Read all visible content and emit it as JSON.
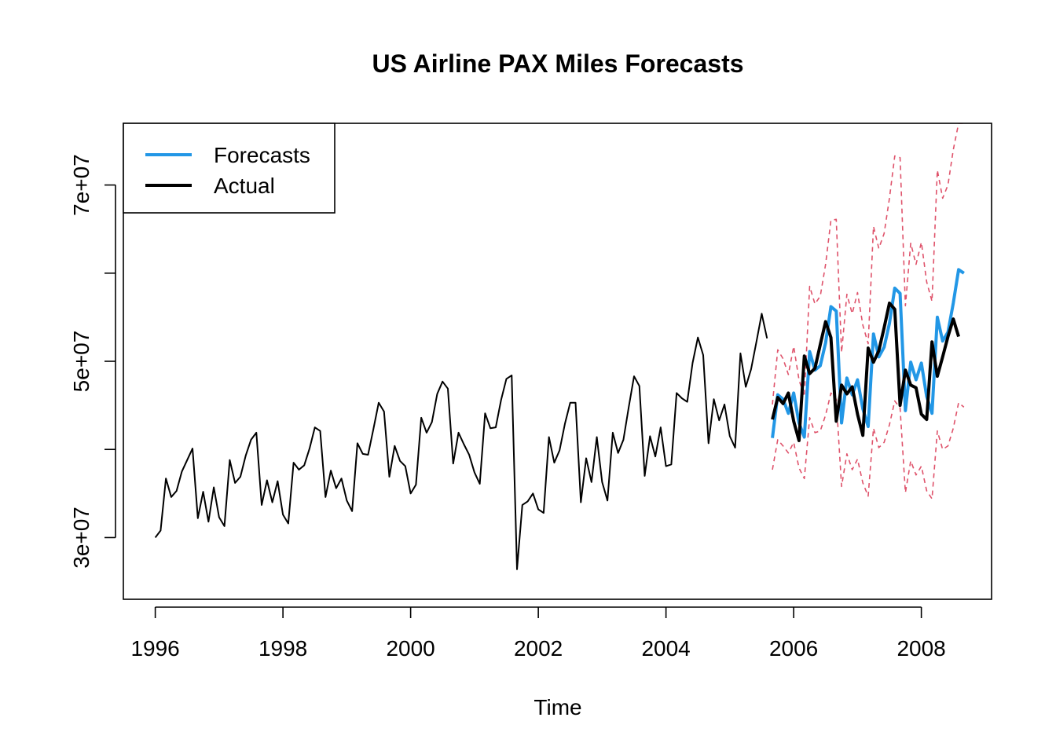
{
  "chart_data": {
    "type": "line",
    "title": "US Airline PAX Miles Forecasts",
    "xlabel": "Time",
    "ylabel": "",
    "xlim": [
      1995.5,
      2009.1
    ],
    "ylim": [
      23000000,
      77000000
    ],
    "x_ticks": [
      {
        "value": 1996,
        "label": "1996"
      },
      {
        "value": 1998,
        "label": "1998"
      },
      {
        "value": 2000,
        "label": "2000"
      },
      {
        "value": 2002,
        "label": "2002"
      },
      {
        "value": 2004,
        "label": "2004"
      },
      {
        "value": 2006,
        "label": "2006"
      },
      {
        "value": 2008,
        "label": "2008"
      }
    ],
    "y_ticks": [
      {
        "value": 30000000,
        "label": "3e+07"
      },
      {
        "value": 40000000,
        "label": ""
      },
      {
        "value": 50000000,
        "label": "5e+07"
      },
      {
        "value": 60000000,
        "label": ""
      },
      {
        "value": 70000000,
        "label": "7e+07"
      }
    ],
    "grid": false,
    "legend": {
      "position": "top-left",
      "entries": [
        {
          "label": "Forecasts",
          "color": "#2297E6"
        },
        {
          "label": "Actual",
          "color": "#000000"
        }
      ]
    },
    "colors": {
      "history": "#000000",
      "forecast": "#2297E6",
      "actual": "#000000",
      "interval": "#DF536B"
    },
    "series": [
      {
        "role": "history",
        "x_start": 1996.0,
        "x_step": 0.08333,
        "values": [
          30000000,
          30800000,
          36700000,
          34600000,
          35300000,
          37500000,
          38800000,
          40100000,
          32200000,
          35200000,
          31800000,
          35700000,
          32300000,
          31300000,
          38800000,
          36200000,
          36900000,
          39300000,
          41100000,
          41900000,
          33700000,
          36500000,
          34000000,
          36400000,
          32600000,
          31600000,
          38500000,
          37700000,
          38200000,
          40100000,
          42500000,
          42100000,
          34600000,
          37600000,
          35600000,
          36700000,
          34200000,
          33000000,
          40700000,
          39500000,
          39400000,
          42300000,
          45300000,
          44300000,
          36900000,
          40400000,
          38700000,
          38100000,
          35000000,
          36000000,
          43600000,
          41900000,
          43100000,
          46300000,
          47700000,
          46900000,
          38400000,
          41900000,
          40600000,
          39400000,
          37400000,
          36100000,
          44100000,
          42400000,
          42500000,
          45600000,
          48000000,
          48400000,
          26400000,
          33700000,
          34100000,
          35000000,
          33200000,
          32800000,
          41400000,
          38500000,
          39900000,
          42900000,
          45300000,
          45300000,
          34000000,
          39000000,
          36300000,
          41400000,
          36300000,
          34200000,
          41900000,
          39600000,
          41100000,
          44800000,
          48300000,
          47200000,
          37000000,
          41500000,
          39200000,
          42500000,
          38100000,
          38300000,
          46400000,
          45800000,
          45400000,
          49800000,
          52700000,
          50700000,
          40700000,
          45700000,
          43300000,
          45100000,
          41500000,
          40200000,
          50900000,
          47100000,
          49100000,
          52200000,
          55400000,
          52600000
        ]
      },
      {
        "role": "forecast",
        "name": "Forecasts",
        "x_start": 2005.667,
        "x_step": 0.08333,
        "values": [
          41300000,
          46200000,
          45700000,
          44100000,
          46400000,
          43000000,
          41400000,
          51100000,
          49000000,
          49500000,
          52100000,
          56200000,
          55700000,
          43000000,
          48100000,
          46200000,
          47900000,
          44600000,
          42600000,
          53100000,
          50500000,
          51600000,
          54300000,
          58300000,
          57700000,
          44400000,
          49900000,
          47900000,
          49800000,
          46000000,
          44100000,
          55000000,
          52300000,
          53300000,
          56600000,
          60400000,
          60000000
        ]
      },
      {
        "role": "actual",
        "name": "Actual",
        "x_start": 2005.667,
        "x_step": 0.08333,
        "values": [
          43400000,
          45900000,
          45200000,
          46400000,
          43200000,
          41000000,
          50600000,
          48600000,
          49200000,
          51900000,
          54500000,
          52700000,
          43200000,
          47300000,
          46300000,
          47100000,
          44000000,
          41600000,
          51500000,
          49900000,
          51200000,
          53800000,
          56600000,
          55900000,
          45000000,
          49000000,
          47300000,
          47000000,
          44000000,
          43400000,
          52200000,
          48300000,
          50500000,
          52800000,
          54800000,
          52800000
        ]
      },
      {
        "role": "upper",
        "x_start": 2005.667,
        "x_step": 0.08333,
        "values": [
          45100000,
          51300000,
          50300000,
          48500000,
          51700000,
          47900000,
          46000000,
          58500000,
          56500000,
          57400000,
          61000000,
          66000000,
          66100000,
          51000000,
          57600000,
          55400000,
          57800000,
          54100000,
          52000000,
          65300000,
          62800000,
          64500000,
          68500000,
          73300000,
          73100000,
          56300000,
          63400000,
          61000000,
          63500000,
          59000000,
          56800000,
          71700000,
          68500000,
          70000000,
          74000000,
          77000000,
          77000000
        ]
      },
      {
        "role": "lower",
        "x_start": 2005.667,
        "x_step": 0.08333,
        "values": [
          37700000,
          41100000,
          40400000,
          39600000,
          40800000,
          37900000,
          36700000,
          43600000,
          41900000,
          42100000,
          43900000,
          46400000,
          45700000,
          35800000,
          39500000,
          37700000,
          38900000,
          36200000,
          34700000,
          42400000,
          40200000,
          40800000,
          42800000,
          45500000,
          44700000,
          35100000,
          38700000,
          37100000,
          38100000,
          35300000,
          34400000,
          42100000,
          40000000,
          40400000,
          42400000,
          45300000,
          44800000
        ]
      }
    ]
  }
}
